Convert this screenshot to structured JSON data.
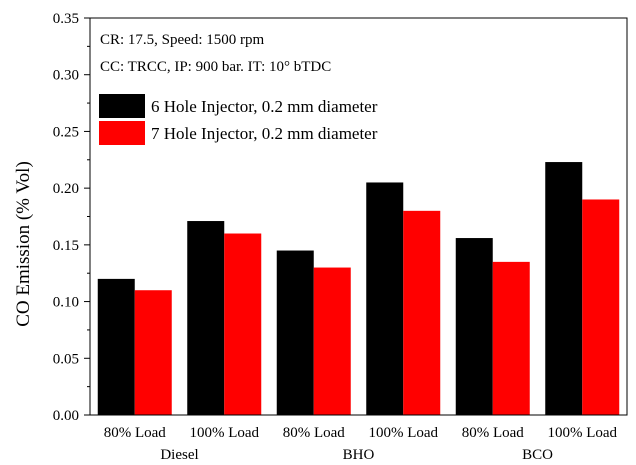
{
  "chart_data": {
    "type": "bar",
    "ylabel": "CO Emission (% Vol)",
    "xlabel": "",
    "ylim": [
      0,
      0.35
    ],
    "yticks": [
      "0.00",
      "0.05",
      "0.10",
      "0.15",
      "0.20",
      "0.25",
      "0.30",
      "0.35"
    ],
    "categories": [
      "80% Load",
      "100% Load",
      "80% Load",
      "100% Load",
      "80% Load",
      "100% Load"
    ],
    "groups": [
      "Diesel",
      "BHO",
      "BCO"
    ],
    "annotations": [
      "CR: 17.5, Speed: 1500 rpm",
      "CC: TRCC, IP: 900 bar. IT: 10° bTDC"
    ],
    "legend_position": "top-left",
    "grid": false,
    "series": [
      {
        "name": "6 Hole Injector, 0.2 mm diameter",
        "color": "#000000",
        "values": [
          0.12,
          0.171,
          0.145,
          0.205,
          0.156,
          0.223
        ]
      },
      {
        "name": "7 Hole Injector, 0.2 mm diameter",
        "color": "#ff0000",
        "values": [
          0.11,
          0.16,
          0.13,
          0.18,
          0.135,
          0.19
        ]
      }
    ]
  }
}
